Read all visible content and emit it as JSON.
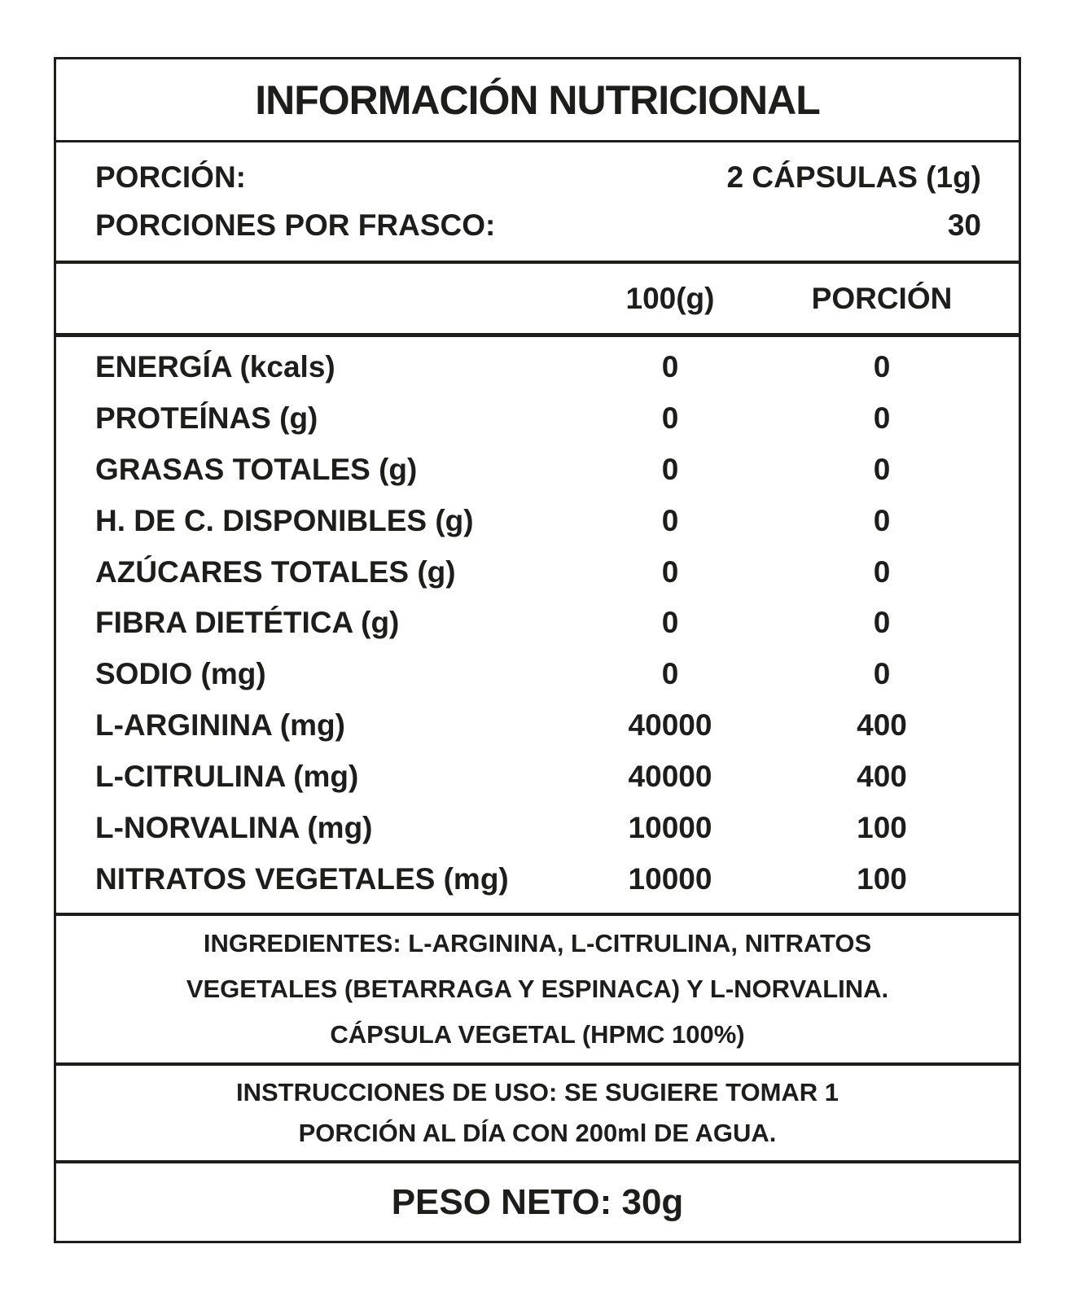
{
  "label": {
    "title": "INFORMACIÓN NUTRICIONAL",
    "serving": {
      "rows": [
        {
          "label": "PORCIÓN:",
          "value": "2 CÁPSULAS (1g)"
        },
        {
          "label": "PORCIONES POR FRASCO:",
          "value": "30"
        }
      ]
    },
    "table": {
      "columns": [
        "100(g)",
        "PORCIÓN"
      ],
      "rows": [
        {
          "name": "ENERGÍA (kcals)",
          "per100": "0",
          "portion": "0"
        },
        {
          "name": "PROTEÍNAS (g)",
          "per100": "0",
          "portion": "0"
        },
        {
          "name": "GRASAS TOTALES (g)",
          "per100": "0",
          "portion": "0"
        },
        {
          "name": "H. DE C. DISPONIBLES (g)",
          "per100": "0",
          "portion": "0"
        },
        {
          "name": "AZÚCARES TOTALES (g)",
          "per100": "0",
          "portion": "0"
        },
        {
          "name": "FIBRA DIETÉTICA (g)",
          "per100": "0",
          "portion": "0"
        },
        {
          "name": "SODIO (mg)",
          "per100": "0",
          "portion": "0"
        },
        {
          "name": "L-ARGININA (mg)",
          "per100": "40000",
          "portion": "400"
        },
        {
          "name": "L-CITRULINA (mg)",
          "per100": "40000",
          "portion": "400"
        },
        {
          "name": "L-NORVALINA (mg)",
          "per100": "10000",
          "portion": "100"
        },
        {
          "name": "NITRATOS VEGETALES (mg)",
          "per100": "10000",
          "portion": "100"
        }
      ]
    },
    "ingredients": {
      "lines": [
        "INGREDIENTES: L-ARGININA, L-CITRULINA, NITRATOS",
        "VEGETALES (BETARRAGA Y ESPINACA) Y L-NORVALINA.",
        "CÁPSULA VEGETAL (HPMC 100%)"
      ]
    },
    "instructions": {
      "lines": [
        "INSTRUCCIONES DE USO: SE SUGIERE TOMAR 1",
        "PORCIÓN AL DÍA CON 200ml DE AGUA."
      ]
    },
    "net_weight": "PESO NETO: 30g",
    "colors": {
      "ink": "#1d1d1b",
      "background": "#ffffff"
    }
  }
}
